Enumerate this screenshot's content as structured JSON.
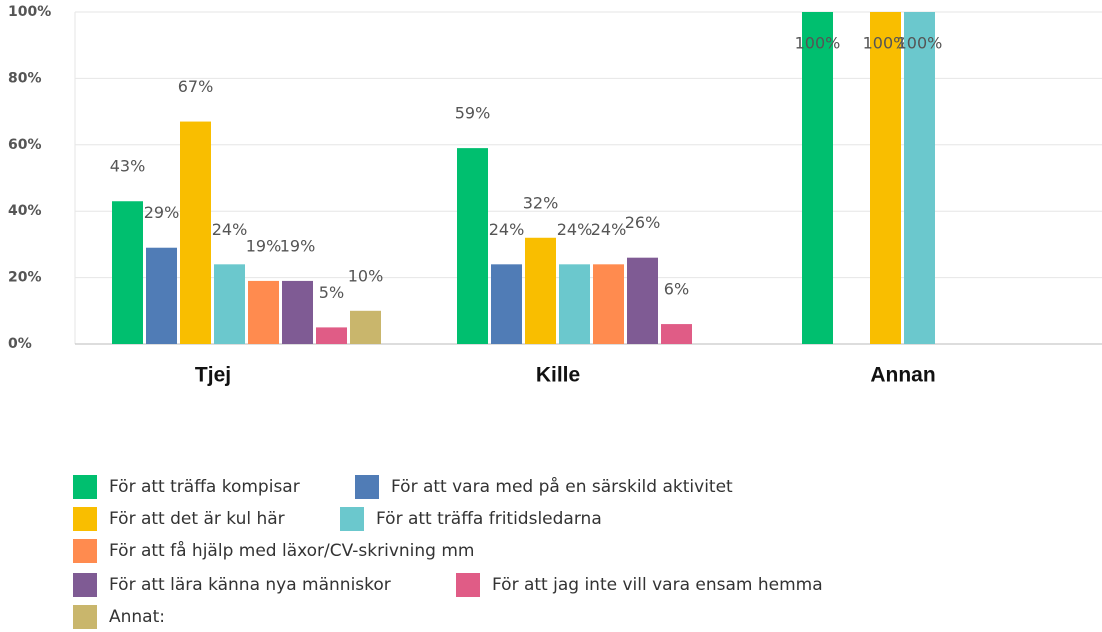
{
  "chart_data": {
    "type": "bar",
    "categories": [
      "Tjej",
      "Kille",
      "Annan"
    ],
    "series": [
      {
        "name": "För att träffa kompisar",
        "color": "#00bf6f",
        "values": [
          43,
          59,
          100
        ],
        "value_labels": [
          "43%",
          "59%",
          "100%"
        ]
      },
      {
        "name": "För att vara med på en särskild aktivitet",
        "color": "#507cb6",
        "values": [
          29,
          24,
          null
        ],
        "value_labels": [
          "29%",
          "24%",
          null
        ]
      },
      {
        "name": "För att det är kul här",
        "color": "#f9be00",
        "values": [
          67,
          32,
          100
        ],
        "value_labels": [
          "67%",
          "32%",
          "100%"
        ]
      },
      {
        "name": "För att träffa fritidsledarna",
        "color": "#6bc8cd",
        "values": [
          24,
          24,
          100
        ],
        "value_labels": [
          "24%",
          "24%",
          "100%"
        ]
      },
      {
        "name": "För att få hjälp med läxor/CV-skrivning mm",
        "color": "#ff8b4f",
        "values": [
          19,
          24,
          null
        ],
        "value_labels": [
          "19%",
          "24%",
          null
        ]
      },
      {
        "name": "För att lära känna nya människor",
        "color": "#7f5b94",
        "values": [
          19,
          26,
          null
        ],
        "value_labels": [
          "19%",
          "26%",
          null
        ]
      },
      {
        "name": "För att jag inte vill vara ensam hemma",
        "color": "#e05c86",
        "values": [
          5,
          6,
          null
        ],
        "value_labels": [
          "5%",
          "6%",
          null
        ]
      },
      {
        "name": "Annat:",
        "color": "#c9b66c",
        "values": [
          10,
          null,
          null
        ],
        "value_labels": [
          "10%",
          null,
          null
        ]
      }
    ],
    "ylim": [
      0,
      100
    ],
    "yticks": [
      {
        "value": 0,
        "label": "0%"
      },
      {
        "value": 20,
        "label": "20%"
      },
      {
        "value": 40,
        "label": "40%"
      },
      {
        "value": 60,
        "label": "60%"
      },
      {
        "value": 80,
        "label": "80%"
      },
      {
        "value": 100,
        "label": "100%"
      }
    ],
    "grid": true
  }
}
